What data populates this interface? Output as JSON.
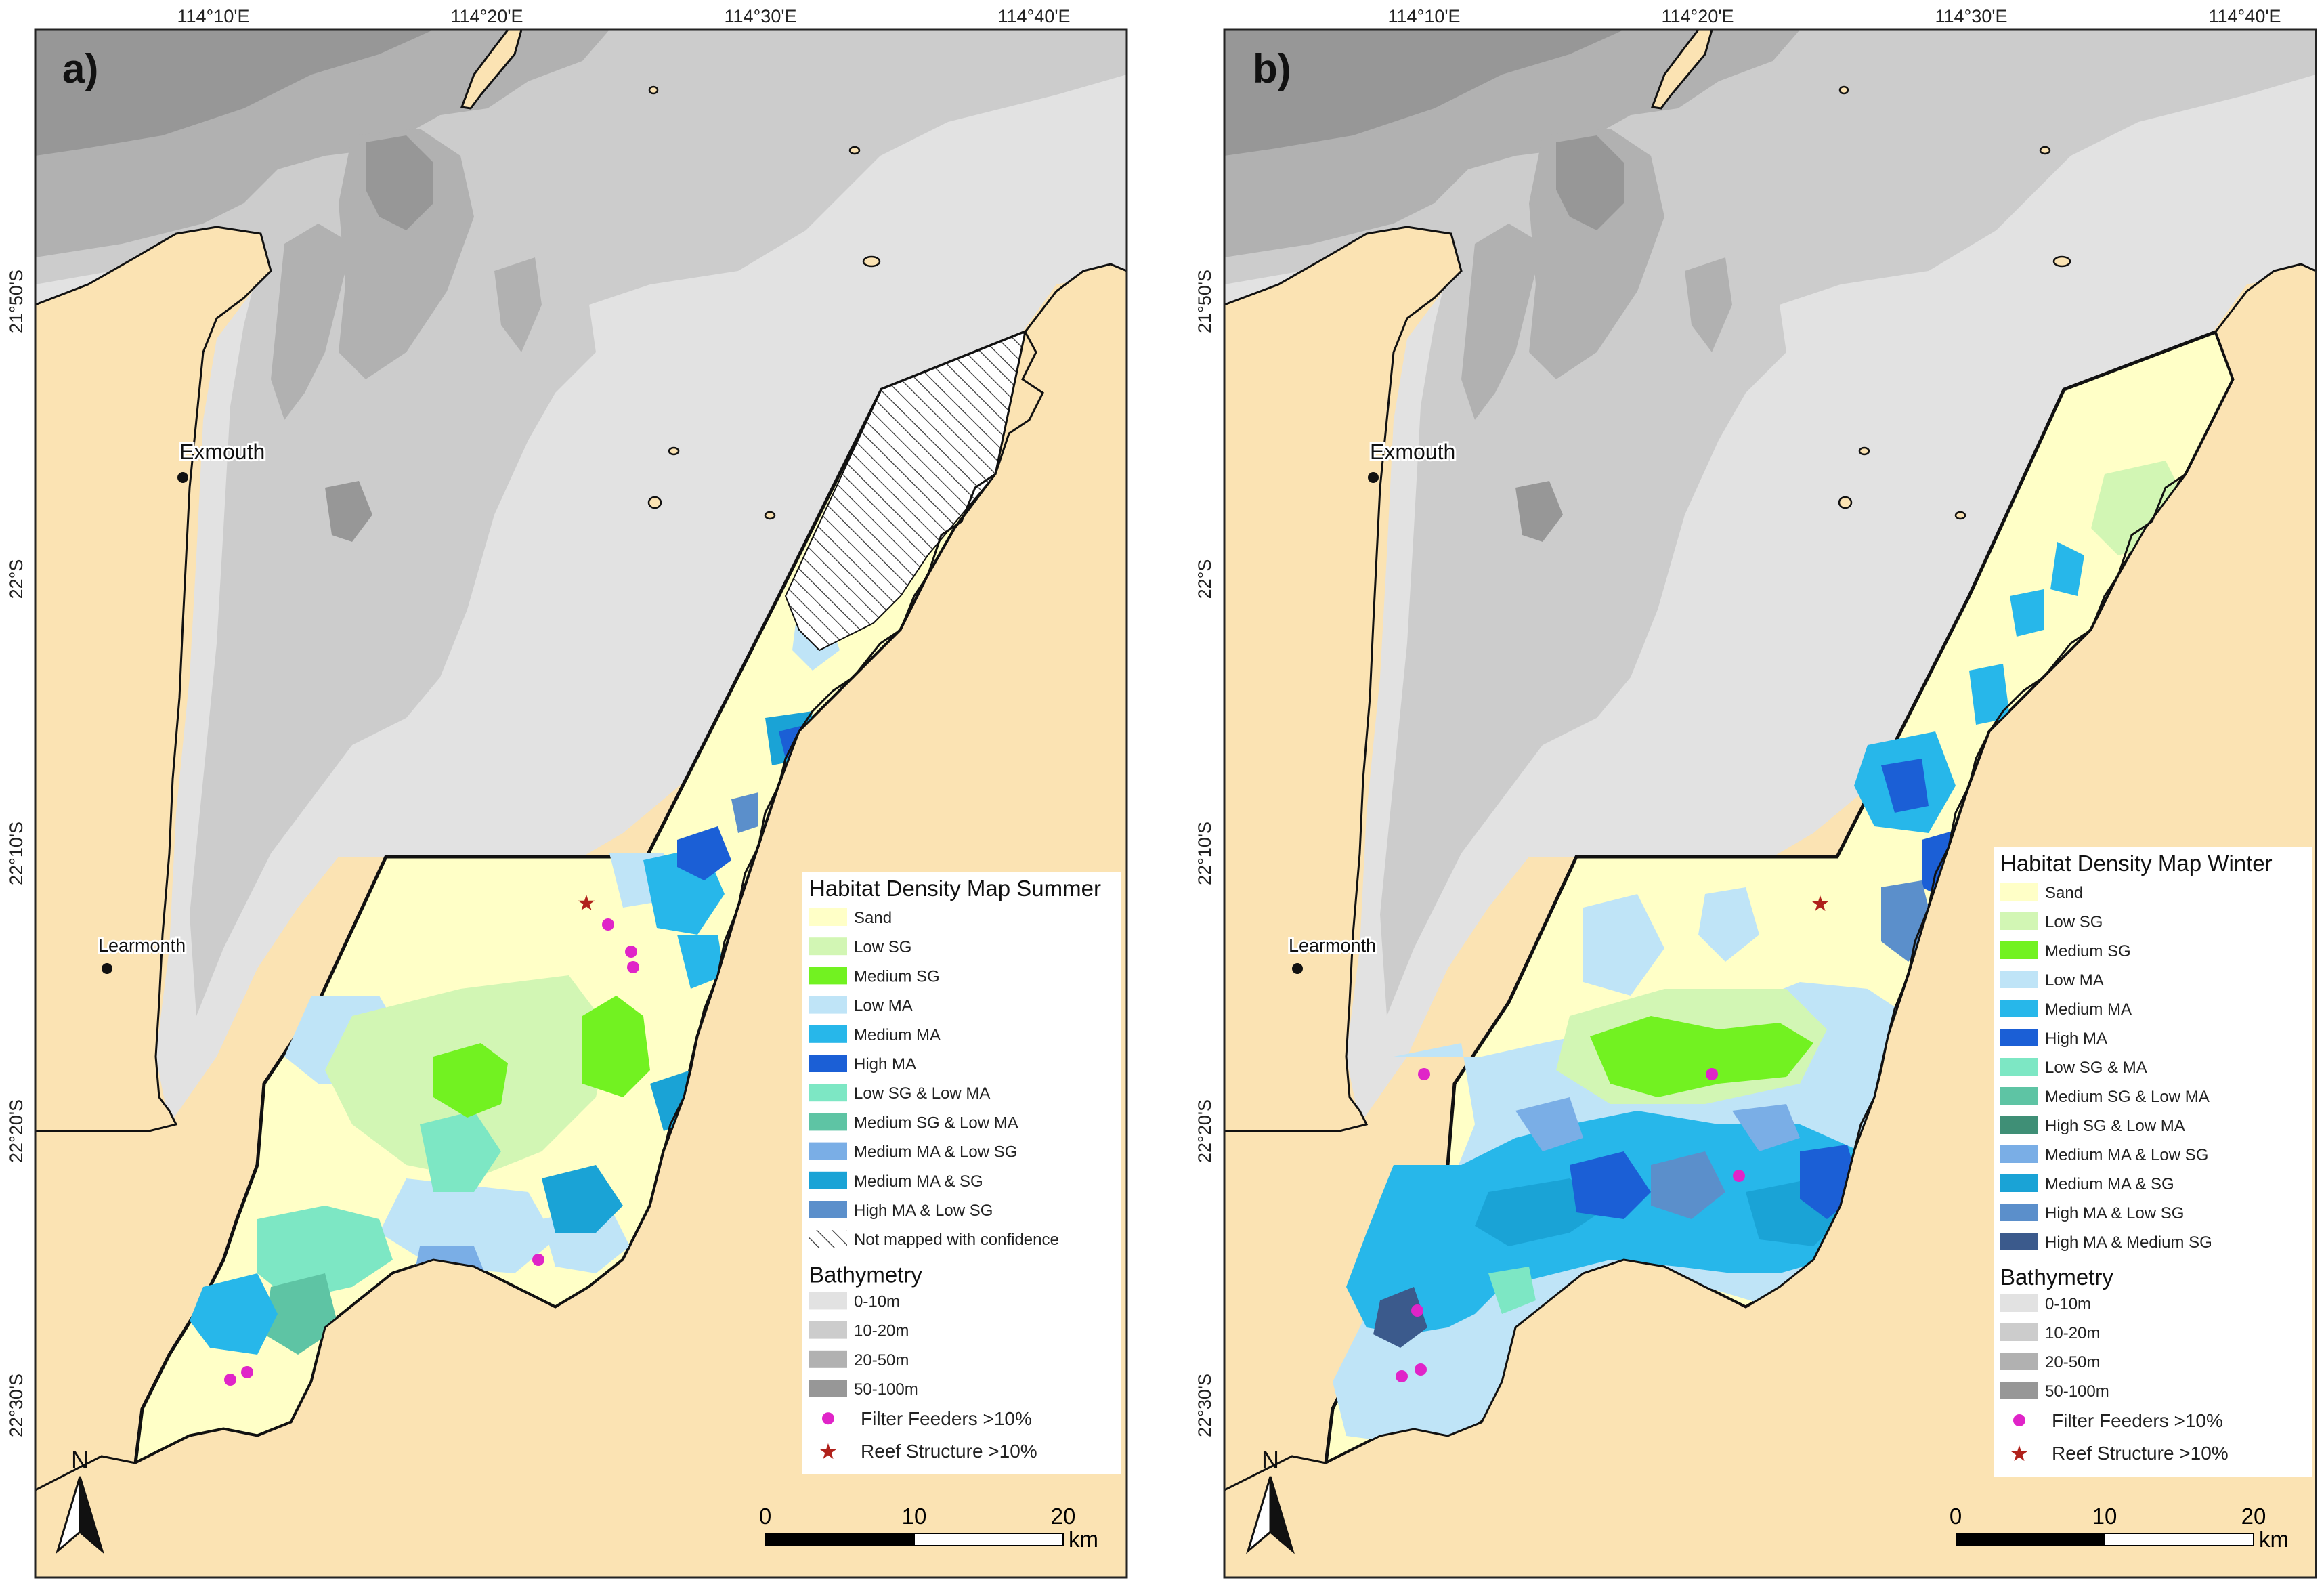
{
  "axis_labels": {
    "lon": [
      "114°10'E",
      "114°20'E",
      "114°30'E",
      "114°40'E"
    ],
    "lat": [
      "21°50'S",
      "22°S",
      "22°10'S",
      "22°20'S",
      "22°30'S"
    ]
  },
  "places": {
    "exmouth": "Exmouth",
    "learmonth": "Learmonth"
  },
  "north_label": "N",
  "scale": {
    "ticks": [
      "0",
      "10",
      "20"
    ],
    "unit": "km"
  },
  "colors": {
    "land": "#fbe3b3",
    "ocean_0_10": "#e2e2e2",
    "ocean_10_20": "#cccccc",
    "ocean_20_50": "#b1b1b1",
    "ocean_50_100": "#979797",
    "sand": "#ffffc7",
    "low_sg": "#d2f6b4",
    "medium_sg": "#72f221",
    "low_ma": "#bfe4f7",
    "medium_ma": "#27b7ea",
    "high_ma": "#1b5fd6",
    "low_sg_low_ma": "#7de7c4",
    "medium_sg_low_ma": "#5ec4a4",
    "high_sg_low_ma": "#3f8f76",
    "medium_ma_low_sg": "#7aaee6",
    "medium_ma_sg": "#1aa3d6",
    "high_ma_low_sg": "#5b8fcb",
    "high_ma_medium_sg": "#3b5a8c",
    "filter_feeder": "#e024c8",
    "reef": "#b0211b"
  },
  "panels": [
    {
      "label": "a)",
      "legend": {
        "title": "Habitat Density Map Summer",
        "items": [
          {
            "label": "Sand",
            "color": "#ffffc7"
          },
          {
            "label": "Low SG",
            "color": "#d2f6b4"
          },
          {
            "label": "Medium SG",
            "color": "#72f221"
          },
          {
            "label": "Low MA",
            "color": "#bfe4f7"
          },
          {
            "label": "Medium MA",
            "color": "#27b7ea"
          },
          {
            "label": "High MA",
            "color": "#1b5fd6"
          },
          {
            "label": "Low SG & Low MA",
            "color": "#7de7c4"
          },
          {
            "label": "Medium SG & Low MA",
            "color": "#5ec4a4"
          },
          {
            "label": "Medium MA & Low SG",
            "color": "#7aaee6"
          },
          {
            "label": "Medium MA & SG",
            "color": "#1aa3d6"
          },
          {
            "label": "High MA & Low SG",
            "color": "#5b8fcb"
          },
          {
            "label": "Not mapped with confidence",
            "color": "hatch"
          }
        ],
        "bathy_title": "Bathymetry",
        "bathy_items": [
          {
            "label": "0-10m",
            "color": "#e2e2e2"
          },
          {
            "label": "10-20m",
            "color": "#cccccc"
          },
          {
            "label": "20-50m",
            "color": "#b1b1b1"
          },
          {
            "label": "50-100m",
            "color": "#979797"
          }
        ],
        "filter_label": "Filter Feeders >10%",
        "reef_label": "Reef Structure >10%"
      }
    },
    {
      "label": "b)",
      "legend": {
        "title": "Habitat Density Map Winter",
        "items": [
          {
            "label": "Sand",
            "color": "#ffffc7"
          },
          {
            "label": "Low SG",
            "color": "#d2f6b4"
          },
          {
            "label": "Medium SG",
            "color": "#72f221"
          },
          {
            "label": "Low MA",
            "color": "#bfe4f7"
          },
          {
            "label": "Medium MA",
            "color": "#27b7ea"
          },
          {
            "label": "High MA",
            "color": "#1b5fd6"
          },
          {
            "label": "Low SG & MA",
            "color": "#7de7c4"
          },
          {
            "label": "Medium SG & Low MA",
            "color": "#5ec4a4"
          },
          {
            "label": "High SG & Low MA",
            "color": "#3f8f76"
          },
          {
            "label": "Medium MA & Low SG",
            "color": "#7aaee6"
          },
          {
            "label": "Medium  MA & SG",
            "color": "#1aa3d6"
          },
          {
            "label": "High MA & Low SG",
            "color": "#5b8fcb"
          },
          {
            "label": "High MA & Medium SG",
            "color": "#3b5a8c"
          }
        ],
        "bathy_title": "Bathymetry",
        "bathy_items": [
          {
            "label": "0-10m",
            "color": "#e2e2e2"
          },
          {
            "label": "10-20m",
            "color": "#cccccc"
          },
          {
            "label": "20-50m",
            "color": "#b1b1b1"
          },
          {
            "label": "50-100m",
            "color": "#979797"
          }
        ],
        "filter_label": "Filter Feeders >10%",
        "reef_label": "Reef Structure >10%"
      }
    }
  ]
}
